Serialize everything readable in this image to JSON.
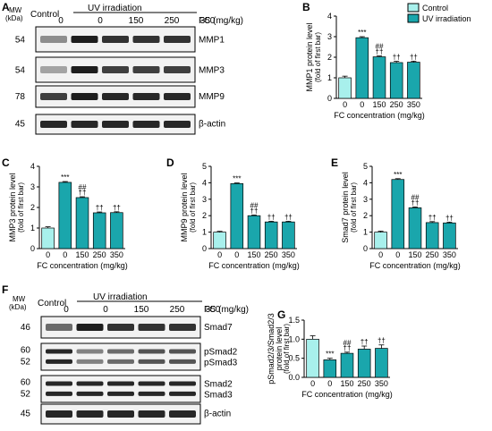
{
  "panels": [
    "A",
    "B",
    "C",
    "D",
    "E",
    "F",
    "G"
  ],
  "colors": {
    "control": "#a8f0ec",
    "uv": "#1aa6ac",
    "stroke": "#000000"
  },
  "legend": {
    "control": "Control",
    "uv": "UV irradiation"
  },
  "blot_common": {
    "mw_label": "MW",
    "kda_label": "(kDa)",
    "control_label": "Control",
    "uv_label": "UV irradiation",
    "fc_label": "FC (mg/kg)",
    "lanes": [
      "0",
      "0",
      "150",
      "250",
      "350"
    ]
  },
  "blot_A": {
    "rows": [
      {
        "mw": "54",
        "name": "MMP1"
      },
      {
        "mw": "54",
        "name": "MMP3"
      },
      {
        "mw": "78",
        "name": "MMP9"
      },
      {
        "mw": "45",
        "name": "β-actin"
      }
    ]
  },
  "blot_F": {
    "rows": [
      {
        "mw": "46",
        "name": "Smad7"
      },
      {
        "mw": "60",
        "mw2": "52",
        "name": "pSmad2",
        "name2": "pSmad3"
      },
      {
        "mw": "60",
        "mw2": "52",
        "name": "Smad2",
        "name2": "Smad3"
      },
      {
        "mw": "45",
        "name": "β-actin"
      }
    ]
  },
  "chart_data": [
    {
      "panel": "B",
      "type": "bar",
      "categories": [
        "0",
        "0",
        "150",
        "250",
        "350"
      ],
      "values": [
        1.0,
        2.95,
        2.02,
        1.74,
        1.76
      ],
      "errors": [
        0.08,
        0.05,
        0.04,
        0.06,
        0.05
      ],
      "colors": [
        "control",
        "uv",
        "uv",
        "uv",
        "uv"
      ],
      "annotations": [
        "",
        "***",
        "##\n††",
        "††",
        "††"
      ],
      "ylabel": "MMP1 protein level",
      "ylabel2": "(fold of first bar)",
      "xlabel": "FC concentration (mg/kg)",
      "ylim": [
        0,
        4
      ],
      "yticks": [
        0,
        1,
        2,
        3,
        4
      ]
    },
    {
      "panel": "C",
      "type": "bar",
      "categories": [
        "0",
        "0",
        "150",
        "250",
        "350"
      ],
      "values": [
        1.0,
        3.22,
        2.48,
        1.74,
        1.75
      ],
      "errors": [
        0.06,
        0.04,
        0.04,
        0.04,
        0.04
      ],
      "colors": [
        "control",
        "uv",
        "uv",
        "uv",
        "uv"
      ],
      "annotations": [
        "",
        "***",
        "##\n††",
        "††",
        "††"
      ],
      "ylabel": "MMP3 protein level",
      "ylabel2": "(fold of first bar)",
      "xlabel": "FC concentration (mg/kg)",
      "ylim": [
        0,
        4
      ],
      "yticks": [
        0,
        1,
        2,
        3,
        4
      ]
    },
    {
      "panel": "D",
      "type": "bar",
      "categories": [
        "0",
        "0",
        "150",
        "250",
        "350"
      ],
      "values": [
        1.0,
        3.95,
        2.0,
        1.62,
        1.62
      ],
      "errors": [
        0.05,
        0.04,
        0.04,
        0.04,
        0.04
      ],
      "colors": [
        "control",
        "uv",
        "uv",
        "uv",
        "uv"
      ],
      "annotations": [
        "",
        "***",
        "##\n††",
        "††",
        "††"
      ],
      "ylabel": "MMP9 protein level",
      "ylabel2": "(fold of first bar)",
      "xlabel": "FC concentration (mg/kg)",
      "ylim": [
        0,
        5
      ],
      "yticks": [
        0,
        1,
        2,
        3,
        4,
        5
      ]
    },
    {
      "panel": "E",
      "type": "bar",
      "categories": [
        "0",
        "0",
        "150",
        "250",
        "350"
      ],
      "values": [
        1.0,
        4.2,
        2.48,
        1.58,
        1.56
      ],
      "errors": [
        0.06,
        0.05,
        0.05,
        0.06,
        0.05
      ],
      "colors": [
        "control",
        "uv",
        "uv",
        "uv",
        "uv"
      ],
      "annotations": [
        "",
        "***",
        "##\n††",
        "††",
        "††"
      ],
      "ylabel": "Smad7 protein level",
      "ylabel2": "(fold of first bar)",
      "xlabel": "FC concentration (mg/kg)",
      "ylim": [
        0,
        5
      ],
      "yticks": [
        0,
        1,
        2,
        3,
        4,
        5
      ]
    },
    {
      "panel": "G",
      "type": "bar",
      "categories": [
        "0",
        "0",
        "150",
        "250",
        "350"
      ],
      "values": [
        1.0,
        0.46,
        0.63,
        0.74,
        0.76
      ],
      "errors": [
        0.09,
        0.04,
        0.03,
        0.08,
        0.09
      ],
      "colors": [
        "control",
        "uv",
        "uv",
        "uv",
        "uv"
      ],
      "annotations": [
        "",
        "***",
        "##\n††",
        "††",
        "††"
      ],
      "ylabel": "pSmad2/3/Smad2/3",
      "ylabel2": "protein level",
      "ylabel3": "(fold of first bar)",
      "xlabel": "FC concentration (mg/kg)",
      "ylim": [
        0,
        1.5
      ],
      "yticks": [
        0.0,
        0.5,
        1.0,
        1.5
      ]
    }
  ]
}
